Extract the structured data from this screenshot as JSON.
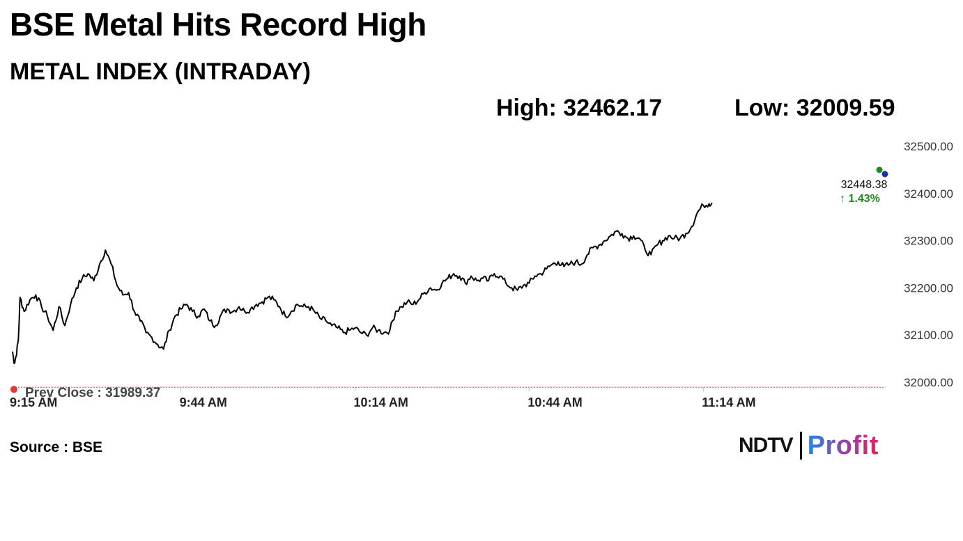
{
  "headline": "BSE Metal Hits Record High",
  "subheadline": "METAL INDEX (INTRADAY)",
  "stats": {
    "high": "High: 32462.17",
    "low": "Low: 32009.59"
  },
  "source": "Source : BSE",
  "logo": {
    "brand": "NDTV",
    "sub": "Profit",
    "sub_gradient": [
      "#1e88e5",
      "#8e44ad",
      "#e91e63"
    ]
  },
  "chart_data": {
    "type": "line",
    "ylim": [
      31960,
      32500
    ],
    "yticks": [
      32500,
      32400,
      32300,
      32200,
      32100,
      32000
    ],
    "ytick_labels": [
      "32500.00",
      "32400.00",
      "32300.00",
      "32200.00",
      "32100.00",
      "32000.00"
    ],
    "xticks": [
      {
        "t": 0,
        "label": "9:15 AM"
      },
      {
        "t": 29,
        "label": "9:44 AM"
      },
      {
        "t": 59,
        "label": "10:14 AM"
      },
      {
        "t": 89,
        "label": "10:44 AM"
      },
      {
        "t": 119,
        "label": "11:14 AM"
      }
    ],
    "x_start_label": "9:15 AM",
    "grid": false,
    "prev_close": {
      "value": 31989.37,
      "label": "Prev Close : 31989.37"
    },
    "last": {
      "value": 32448.38,
      "label": "32448.38",
      "change": "↑ 1.43%"
    },
    "colors": {
      "line": "#000000",
      "prev_close_line": "#d05050",
      "start_marker": "#e53935",
      "change_up": "#1a8c1a",
      "end_marker_a": "#1a8c1a",
      "end_marker_b": "#1a2fa8"
    },
    "series": [
      {
        "points": [
          [
            0,
            32065
          ],
          [
            0.3,
            32040
          ],
          [
            0.6,
            32055
          ],
          [
            1,
            32090
          ],
          [
            1.3,
            32180
          ],
          [
            2,
            32150
          ],
          [
            3,
            32175
          ],
          [
            4,
            32185
          ],
          [
            5,
            32160
          ],
          [
            6,
            32140
          ],
          [
            7,
            32110
          ],
          [
            8,
            32160
          ],
          [
            9,
            32120
          ],
          [
            10,
            32165
          ],
          [
            11,
            32200
          ],
          [
            12,
            32220
          ],
          [
            13,
            32230
          ],
          [
            14,
            32215
          ],
          [
            15,
            32250
          ],
          [
            16,
            32280
          ],
          [
            17,
            32250
          ],
          [
            18,
            32205
          ],
          [
            19,
            32185
          ],
          [
            20,
            32190
          ],
          [
            21,
            32150
          ],
          [
            22,
            32130
          ],
          [
            23,
            32105
          ],
          [
            24,
            32095
          ],
          [
            25,
            32080
          ],
          [
            26,
            32070
          ],
          [
            27,
            32110
          ],
          [
            28,
            32140
          ],
          [
            29,
            32155
          ],
          [
            30,
            32165
          ],
          [
            31,
            32150
          ],
          [
            32,
            32140
          ],
          [
            33,
            32155
          ],
          [
            34,
            32130
          ],
          [
            35,
            32120
          ],
          [
            36,
            32145
          ],
          [
            37,
            32155
          ],
          [
            38,
            32150
          ],
          [
            39,
            32160
          ],
          [
            40,
            32150
          ],
          [
            41,
            32155
          ],
          [
            42,
            32165
          ],
          [
            43,
            32170
          ],
          [
            44,
            32180
          ],
          [
            45,
            32175
          ],
          [
            46,
            32160
          ],
          [
            47,
            32140
          ],
          [
            48,
            32150
          ],
          [
            49,
            32165
          ],
          [
            50,
            32160
          ],
          [
            51,
            32160
          ],
          [
            52,
            32150
          ],
          [
            53,
            32135
          ],
          [
            54,
            32130
          ],
          [
            55,
            32120
          ],
          [
            56,
            32115
          ],
          [
            57,
            32105
          ],
          [
            58,
            32110
          ],
          [
            59,
            32115
          ],
          [
            60,
            32105
          ],
          [
            61,
            32100
          ],
          [
            62,
            32115
          ],
          [
            63,
            32110
          ],
          [
            64,
            32105
          ],
          [
            65,
            32110
          ],
          [
            66,
            32150
          ],
          [
            67,
            32160
          ],
          [
            68,
            32170
          ],
          [
            69,
            32165
          ],
          [
            70,
            32175
          ],
          [
            71,
            32190
          ],
          [
            72,
            32200
          ],
          [
            73,
            32195
          ],
          [
            74,
            32210
          ],
          [
            75,
            32220
          ],
          [
            76,
            32230
          ],
          [
            77,
            32225
          ],
          [
            78,
            32210
          ],
          [
            79,
            32225
          ],
          [
            80,
            32215
          ],
          [
            81,
            32220
          ],
          [
            82,
            32215
          ],
          [
            83,
            32230
          ],
          [
            84,
            32225
          ],
          [
            85,
            32210
          ],
          [
            86,
            32200
          ],
          [
            87,
            32195
          ],
          [
            88,
            32205
          ],
          [
            89,
            32210
          ],
          [
            90,
            32225
          ],
          [
            91,
            32230
          ],
          [
            92,
            32240
          ],
          [
            93,
            32250
          ],
          [
            94,
            32255
          ],
          [
            95,
            32245
          ],
          [
            96,
            32250
          ],
          [
            97,
            32255
          ],
          [
            98,
            32250
          ],
          [
            99,
            32270
          ],
          [
            100,
            32285
          ],
          [
            101,
            32290
          ],
          [
            102,
            32300
          ],
          [
            103,
            32310
          ],
          [
            104,
            32320
          ],
          [
            105,
            32315
          ],
          [
            106,
            32305
          ],
          [
            107,
            32310
          ],
          [
            108,
            32305
          ],
          [
            109,
            32280
          ],
          [
            110,
            32270
          ],
          [
            111,
            32290
          ],
          [
            112,
            32300
          ],
          [
            113,
            32310
          ],
          [
            114,
            32305
          ],
          [
            115,
            32305
          ],
          [
            116,
            32315
          ],
          [
            117,
            32330
          ],
          [
            118,
            32360
          ],
          [
            119,
            32375
          ],
          [
            120,
            32378
          ],
          [
            120.5,
            32380
          ]
        ]
      }
    ]
  }
}
